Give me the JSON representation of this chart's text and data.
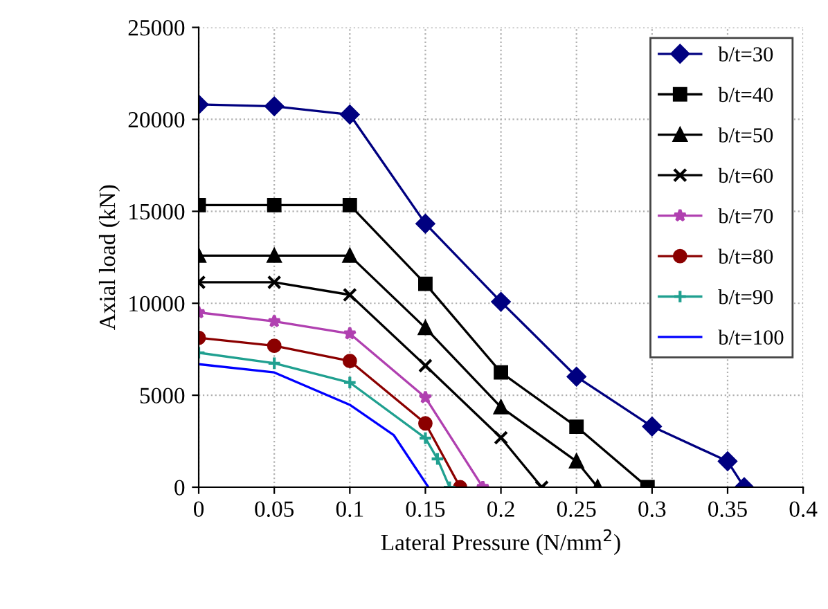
{
  "chart_data": {
    "type": "line",
    "xlabel": "Lateral Pressure (N/mm$^{2}$)",
    "ylabel": "Axial load (kN)",
    "xlim": [
      0,
      0.4
    ],
    "xticks": [
      0,
      0.05,
      0.1,
      0.15,
      0.2,
      0.25,
      0.3,
      0.35,
      0.4
    ],
    "ylim": [
      0,
      25000
    ],
    "yticks": [
      0,
      5000,
      10000,
      15000,
      20000,
      25000
    ],
    "grid": true,
    "legend": "top right",
    "series": [
      {
        "name": "b/t=30",
        "color": "#000080",
        "marker": "diamond",
        "x": [
          0,
          0.05,
          0.1,
          0.15,
          0.2,
          0.25,
          0.3,
          0.35,
          0.361
        ],
        "values": [
          20810,
          20710,
          20260,
          14330,
          10080,
          6010,
          3300,
          1410,
          0
        ]
      },
      {
        "name": "b/t=40",
        "color": "#000000",
        "marker": "square",
        "x": [
          0,
          0.05,
          0.1,
          0.15,
          0.2,
          0.25,
          0.297
        ],
        "values": [
          15340,
          15340,
          15340,
          11060,
          6240,
          3290,
          0
        ]
      },
      {
        "name": "b/t=50",
        "color": "#000000",
        "marker": "triangle",
        "x": [
          0,
          0.05,
          0.1,
          0.15,
          0.2,
          0.25,
          0.264
        ],
        "values": [
          12590,
          12590,
          12590,
          8660,
          4350,
          1410,
          0
        ]
      },
      {
        "name": "b/t=60",
        "color": "#000000",
        "marker": "cross",
        "x": [
          0,
          0.05,
          0.1,
          0.15,
          0.2,
          0.227
        ],
        "values": [
          11140,
          11140,
          10460,
          6610,
          2690,
          0
        ]
      },
      {
        "name": "b/t=70",
        "color": "#b040b0",
        "marker": "star",
        "x": [
          0,
          0.05,
          0.1,
          0.15,
          0.188
        ],
        "values": [
          9500,
          9020,
          8350,
          4880,
          0
        ]
      },
      {
        "name": "b/t=80",
        "color": "#8b0000",
        "marker": "circle",
        "x": [
          0,
          0.05,
          0.1,
          0.15,
          0.173
        ],
        "values": [
          8120,
          7690,
          6860,
          3470,
          0
        ]
      },
      {
        "name": "b/t=90",
        "color": "#20a090",
        "marker": "plus",
        "x": [
          0,
          0.05,
          0.1,
          0.15,
          0.158,
          0.166
        ],
        "values": [
          7310,
          6740,
          5690,
          2670,
          1540,
          0
        ]
      },
      {
        "name": "b/t=100",
        "color": "#0000ff",
        "marker": "none",
        "x": [
          0,
          0.05,
          0.1,
          0.129,
          0.152
        ],
        "values": [
          6690,
          6240,
          4480,
          2840,
          0
        ]
      }
    ]
  }
}
